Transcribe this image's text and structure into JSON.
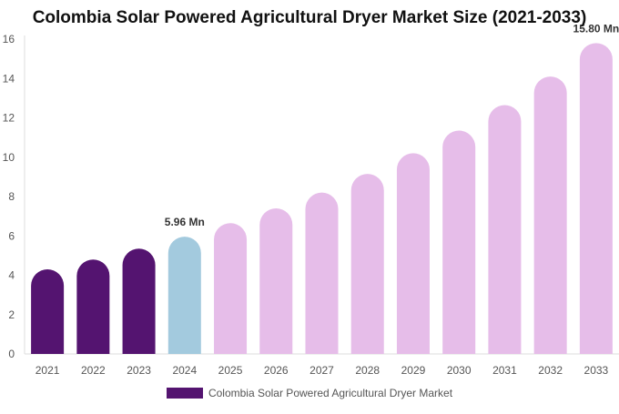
{
  "chart_data": {
    "type": "bar",
    "title": "Colombia Solar Powered Agricultural Dryer Market Size (2021-2033)",
    "xlabel": "",
    "ylabel": "",
    "categories": [
      "2021",
      "2022",
      "2023",
      "2024",
      "2025",
      "2026",
      "2027",
      "2028",
      "2029",
      "2030",
      "2031",
      "2032",
      "2033"
    ],
    "series": [
      {
        "name": "Colombia Solar Powered Agricultural Dryer Market",
        "values": [
          4.3,
          4.8,
          5.35,
          5.96,
          6.65,
          7.4,
          8.2,
          9.15,
          10.2,
          11.35,
          12.65,
          14.1,
          15.8
        ]
      }
    ],
    "ylim": [
      0,
      16
    ],
    "yticks": [
      0,
      2,
      4,
      6,
      8,
      10,
      12,
      14,
      16
    ],
    "grid": false,
    "legend_position": "bottom",
    "annotations": [
      {
        "index": 3,
        "text": "5.96 Mn"
      },
      {
        "index": 12,
        "text": "15.80 Mn"
      }
    ],
    "colors": {
      "historical": "#541470",
      "base_year": "#a3cade",
      "forecast": "#e6bde9",
      "axis": "#dddddd",
      "tick_text": "#555555",
      "label_text": "#333333"
    },
    "bar_color_groups": [
      "historical",
      "historical",
      "historical",
      "base_year",
      "forecast",
      "forecast",
      "forecast",
      "forecast",
      "forecast",
      "forecast",
      "forecast",
      "forecast",
      "forecast"
    ]
  }
}
